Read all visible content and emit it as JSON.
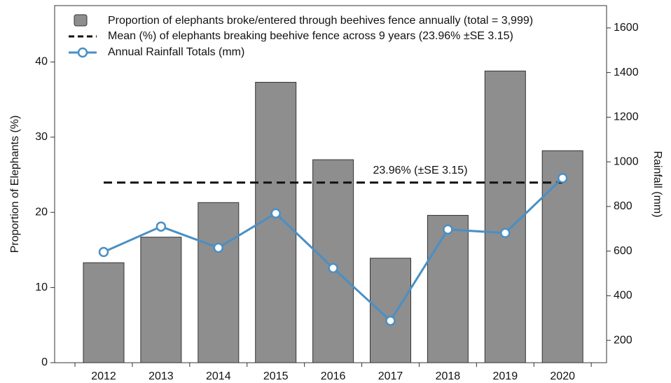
{
  "chart_data": {
    "type": "bar",
    "categories": [
      "2012",
      "2013",
      "2014",
      "2015",
      "2016",
      "2017",
      "2018",
      "2019",
      "2020"
    ],
    "series": [
      {
        "name": "Proportion of elephants broke/entered through beehives fence annually (total = 3,999)",
        "type": "bar",
        "color": "#8e8e8e",
        "values": [
          13.3,
          16.7,
          21.3,
          37.3,
          27.0,
          13.9,
          19.6,
          38.8,
          28.2
        ]
      },
      {
        "name": "Annual Rainfall Totals (mm)",
        "type": "line",
        "axis": "y2",
        "color": "#4a8fc4",
        "values": [
          596,
          710,
          615,
          769,
          524,
          288,
          697,
          681,
          927
        ]
      }
    ],
    "mean_line": {
      "name": "Mean (%) of elephants breaking beehive fence across 9 years (23.96% ±SE 3.15)",
      "value": 23.96,
      "color": "#111111",
      "annotation": "23.96% (±SE 3.15)"
    },
    "ylabel": "Proportion of Elephants (%)",
    "y2label": "Rainfall (mm)",
    "ylim": [
      0,
      47.5
    ],
    "yticks": [
      0,
      10,
      20,
      30,
      40
    ],
    "y2lim": [
      100,
      1700
    ],
    "y2ticks": [
      200,
      400,
      600,
      800,
      1000,
      1200,
      1400,
      1600
    ]
  }
}
